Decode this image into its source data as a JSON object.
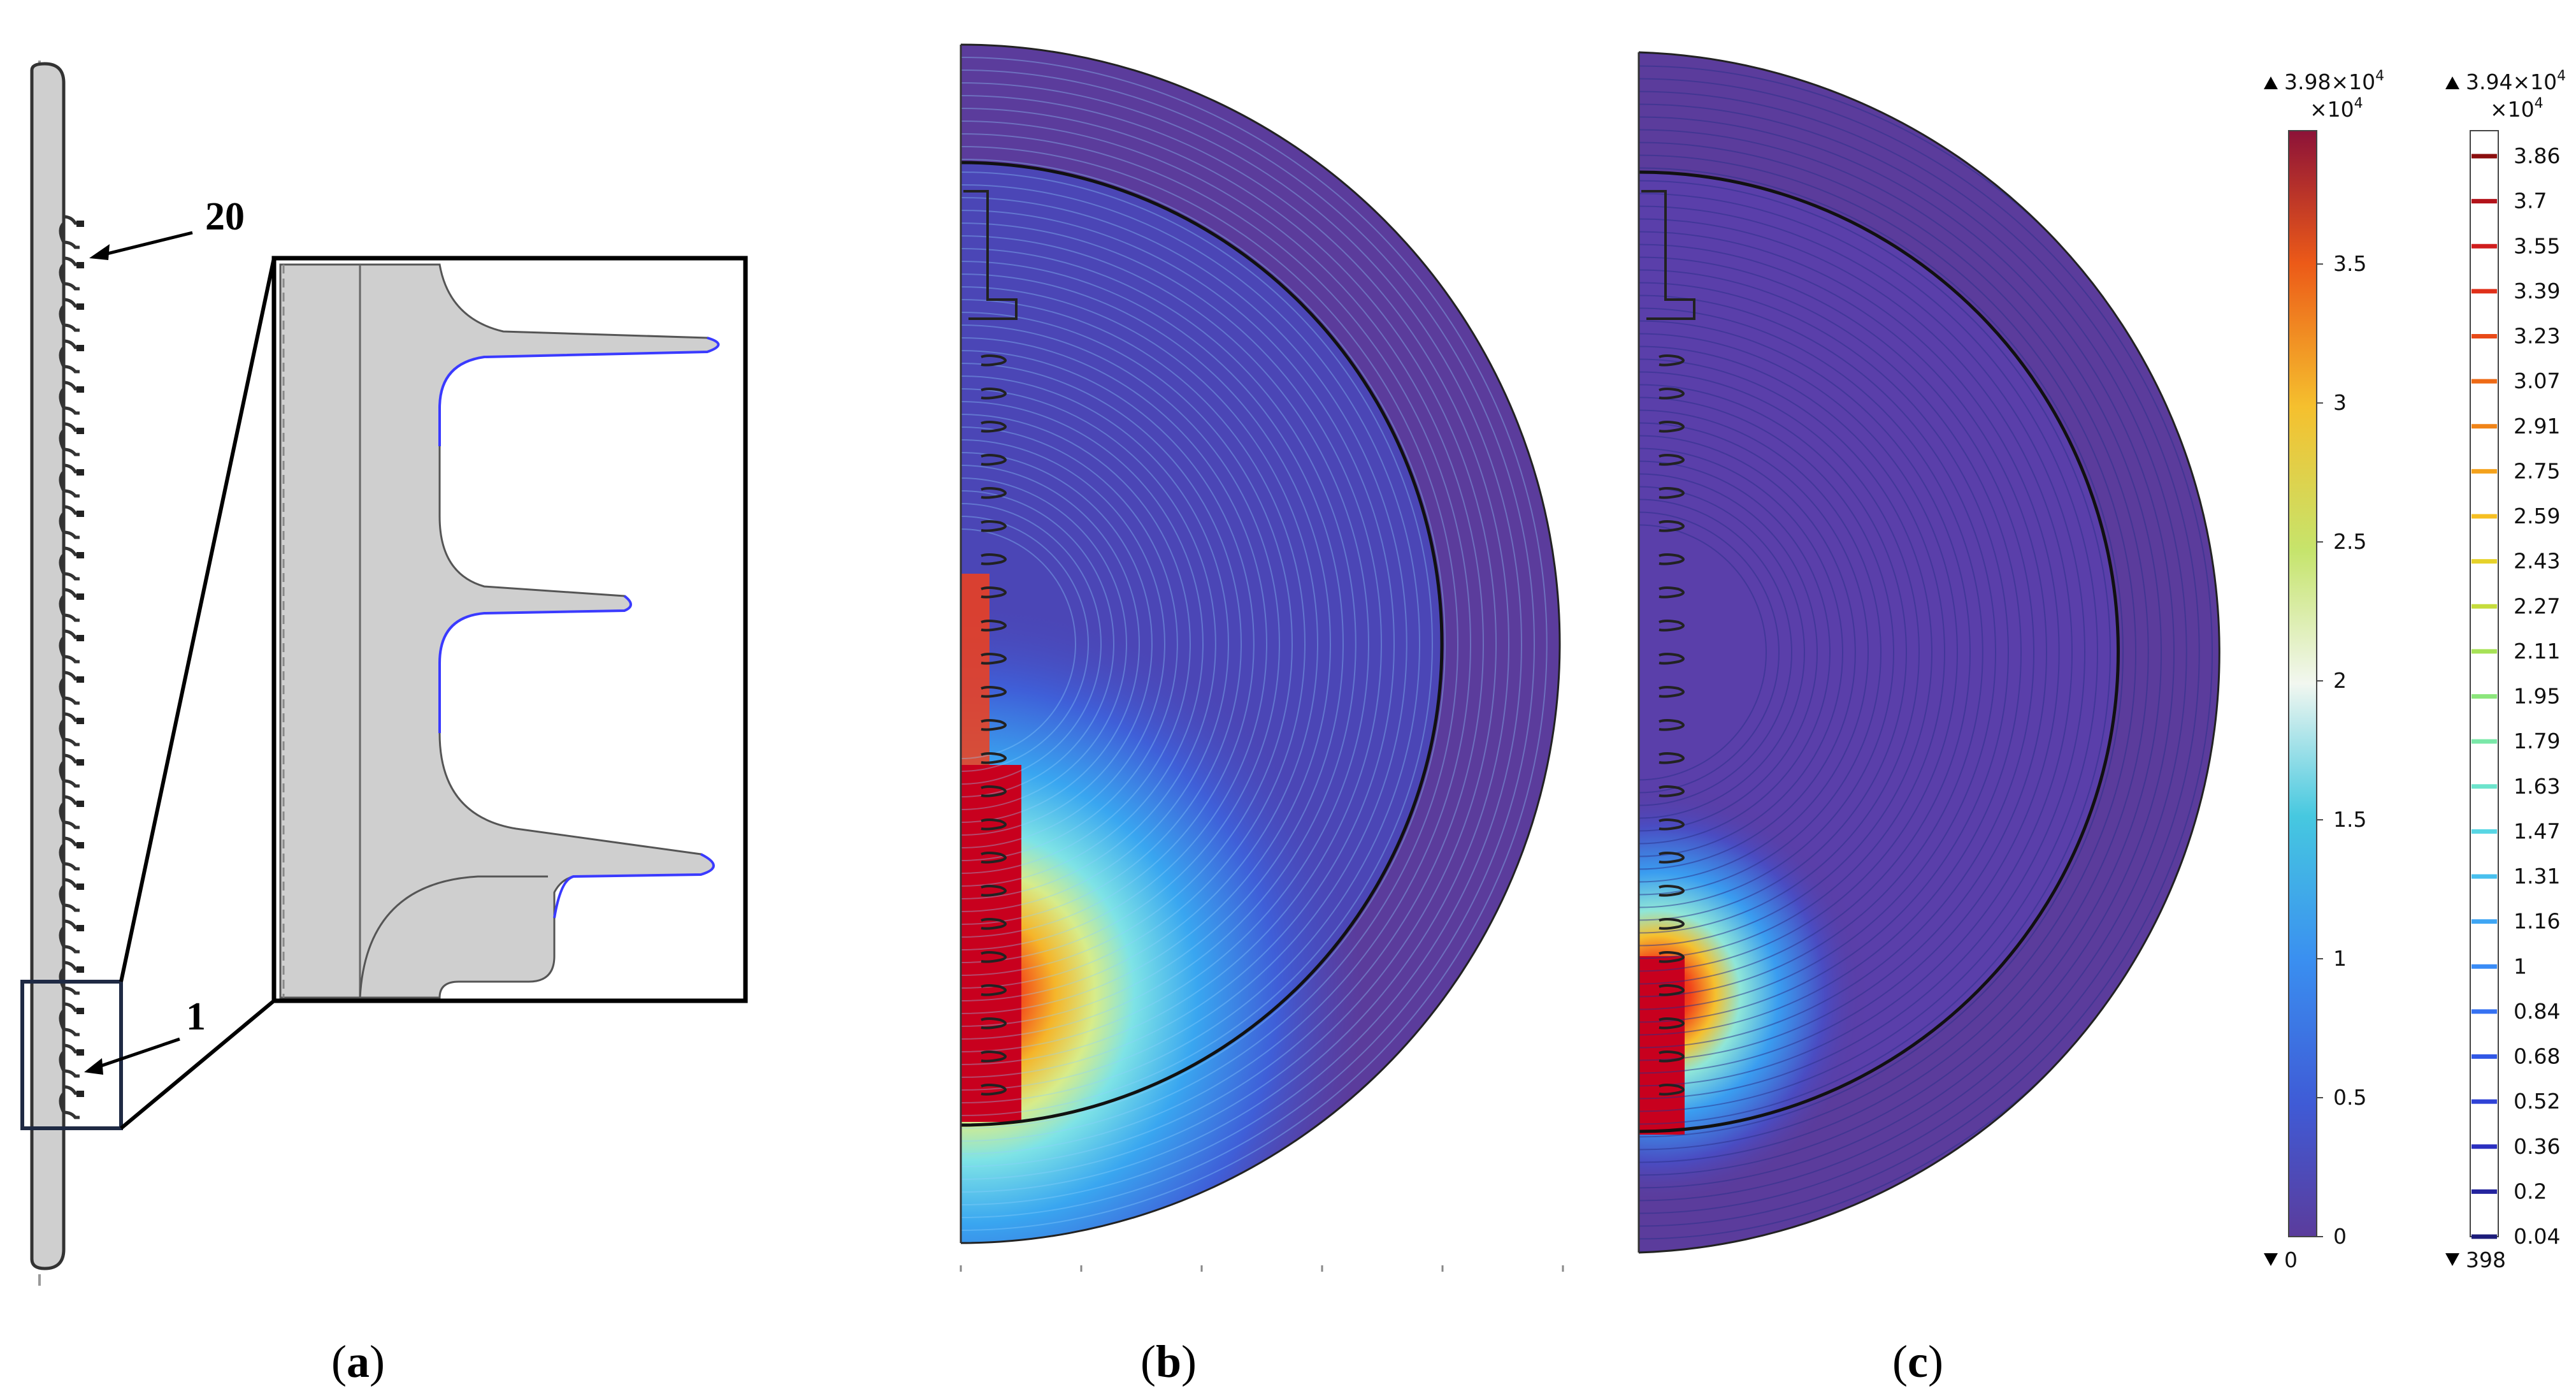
{
  "figure": {
    "panel_a": {
      "label": "a",
      "callout_top": "20",
      "callout_bottom": "1"
    },
    "panel_b": {
      "label": "b"
    },
    "panel_c": {
      "label": "c"
    },
    "colorbar_continuous": {
      "max_label": "3.98×10",
      "max_exp": "4",
      "multiplier": "×10",
      "multiplier_exp": "4",
      "min_label": "0",
      "ticks": [
        "3.5",
        "3",
        "2.5",
        "2",
        "1.5",
        "1",
        "0.5",
        "0"
      ],
      "tick_values": [
        3.5,
        3,
        2.5,
        2,
        1.5,
        1,
        0.5,
        0
      ],
      "range": [
        0,
        3.98
      ]
    },
    "colorbar_contour": {
      "max_label": "3.94×10",
      "max_exp": "4",
      "multiplier": "×10",
      "multiplier_exp": "4",
      "min_label": "398",
      "ticks": [
        "3.86",
        "3.7",
        "3.55",
        "3.39",
        "3.23",
        "3.07",
        "2.91",
        "2.75",
        "2.59",
        "2.43",
        "2.27",
        "2.11",
        "1.95",
        "1.79",
        "1.63",
        "1.47",
        "1.31",
        "1.16",
        "1",
        "0.84",
        "0.68",
        "0.52",
        "0.36",
        "0.2",
        "0.04"
      ]
    },
    "colors": {
      "background_field": "#5b3c9c",
      "insulator_fill": "#cfcfcf",
      "zoom_frame": "#1f2a44",
      "high_field": "#c8001e",
      "conductor_edge": "#3a3aff"
    }
  }
}
